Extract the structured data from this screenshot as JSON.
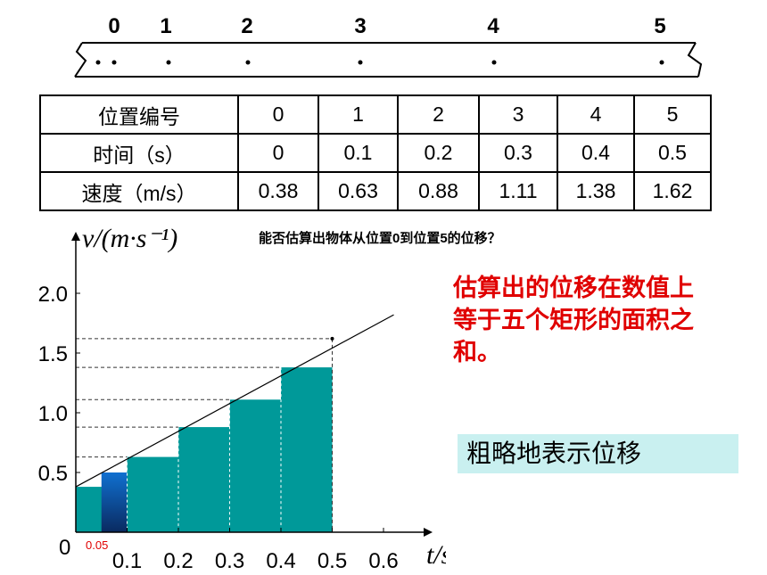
{
  "tape": {
    "position_labels": [
      "0",
      "1",
      "2",
      "3",
      "4",
      "5"
    ]
  },
  "table": {
    "rows": [
      {
        "header": "位置编号",
        "cells": [
          "0",
          "1",
          "2",
          "3",
          "4",
          "5"
        ]
      },
      {
        "header": "时间（s）",
        "cells": [
          "0",
          "0.1",
          "0.2",
          "0.3",
          "0.4",
          "0.5"
        ]
      },
      {
        "header": "速度（m/s）",
        "cells": [
          "0.38",
          "0.63",
          "0.88",
          "1.11",
          "1.38",
          "1.62"
        ]
      }
    ]
  },
  "question": "能否估算出物体从位置0到位置5的位移？",
  "red_note": "估算出的位移在数值上等于五个矩形的面积之和。",
  "rough_label": "粗略地表示位移",
  "colors": {
    "rect_fill": "#009999",
    "highlight_rect": "#1070d0",
    "note_color": "#e00000",
    "rough_bg": "#c9f0f0"
  },
  "chart_data": {
    "type": "bar",
    "ylabel": "v/(m·s⁻¹)",
    "xlabel": "t/s",
    "x_ticks": [
      "0.1",
      "0.2",
      "0.3",
      "0.4",
      "0.5",
      "0.6"
    ],
    "y_ticks": [
      "0.5",
      "1.0",
      "1.5",
      "2.0"
    ],
    "origin_label": "0",
    "half_step_label": "0.05",
    "xlim": [
      0,
      0.6
    ],
    "ylim": [
      0,
      2.0
    ],
    "rects": [
      {
        "x0": 0.0,
        "x1": 0.1,
        "v": 0.38
      },
      {
        "x0": 0.1,
        "x1": 0.2,
        "v": 0.63
      },
      {
        "x0": 0.2,
        "x1": 0.3,
        "v": 0.88
      },
      {
        "x0": 0.3,
        "x1": 0.4,
        "v": 1.11
      },
      {
        "x0": 0.4,
        "x1": 0.5,
        "v": 1.38
      }
    ],
    "highlight_strip": {
      "x0": 0.05,
      "x1": 0.1,
      "v": 0.5
    },
    "line": {
      "x0": 0.0,
      "y0": 0.38,
      "x1": 0.62,
      "y1": 1.82
    },
    "endpoint": {
      "x": 0.5,
      "v": 1.62
    }
  }
}
